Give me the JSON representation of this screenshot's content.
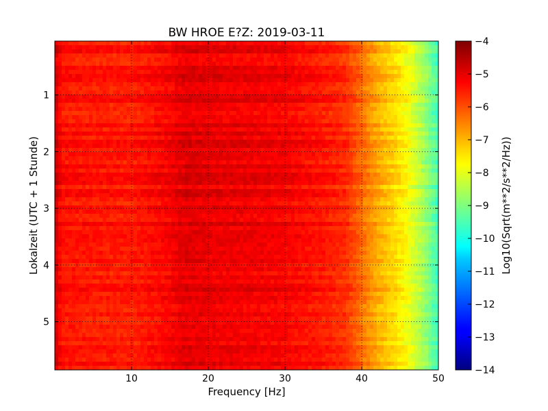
{
  "chart_data": {
    "type": "heatmap",
    "title": "BW HROE E?Z: 2019-03-11",
    "xlabel": "Frequency [Hz]",
    "ylabel": "Lokalzeit (UTC + 1 Stunde)",
    "xlim": [
      0,
      50
    ],
    "ylim": [
      5.85,
      0.05
    ],
    "x_ticks": [
      10,
      20,
      30,
      40,
      50
    ],
    "y_ticks": [
      1,
      2,
      3,
      4,
      5
    ],
    "grid": true,
    "colormap": "jet",
    "colorbar": {
      "label": "Log10(Sqrt(m**2/s**2/Hz))",
      "range": [
        -14,
        -4
      ],
      "ticks": [
        -4,
        -5,
        -6,
        -7,
        -8,
        -9,
        -10,
        -11,
        -12,
        -13,
        -14
      ]
    },
    "frequency_profile_hz": [
      0,
      1,
      5,
      10,
      15,
      17,
      20,
      25,
      30,
      35,
      38,
      40,
      42,
      44,
      46,
      48,
      50
    ],
    "frequency_profile_log10": [
      -4.8,
      -5.4,
      -5.45,
      -5.5,
      -5.2,
      -4.95,
      -5.05,
      -5.1,
      -5.2,
      -5.45,
      -5.7,
      -6.3,
      -6.9,
      -7.3,
      -7.8,
      -8.6,
      -9.6
    ]
  }
}
